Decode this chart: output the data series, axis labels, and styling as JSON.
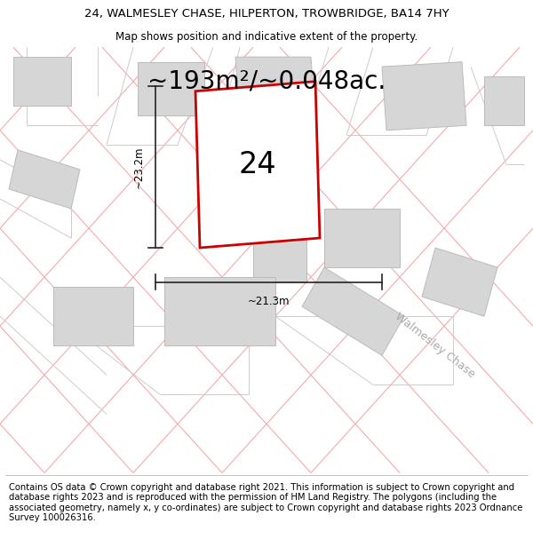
{
  "title_line1": "24, WALMESLEY CHASE, HILPERTON, TROWBRIDGE, BA14 7HY",
  "title_line2": "Map shows position and indicative extent of the property.",
  "area_text": "~193m²/~0.048ac.",
  "label_number": "24",
  "dim_width": "~21.3m",
  "dim_height": "~23.2m",
  "road_label": "Walmesley Chase",
  "footer_text": "Contains OS data © Crown copyright and database right 2021. This information is subject to Crown copyright and database rights 2023 and is reproduced with the permission of HM Land Registry. The polygons (including the associated geometry, namely x, y co-ordinates) are subject to Crown copyright and database rights 2023 Ordnance Survey 100026316.",
  "map_bg": "#f2f2f2",
  "plot_fill": "#ffffff",
  "plot_edge": "#cc0000",
  "building_fill": "#d6d6d6",
  "building_edge": "#bbbbbb",
  "road_lines_color": "#f5aaaa",
  "parcel_lines_color": "#cccccc",
  "dim_line_color": "#222222",
  "title_fontsize": 9.5,
  "subtitle_fontsize": 8.5,
  "area_fontsize": 20,
  "label_fontsize": 24,
  "dim_fontsize": 8.5,
  "road_label_fontsize": 9,
  "footer_fontsize": 7.2
}
